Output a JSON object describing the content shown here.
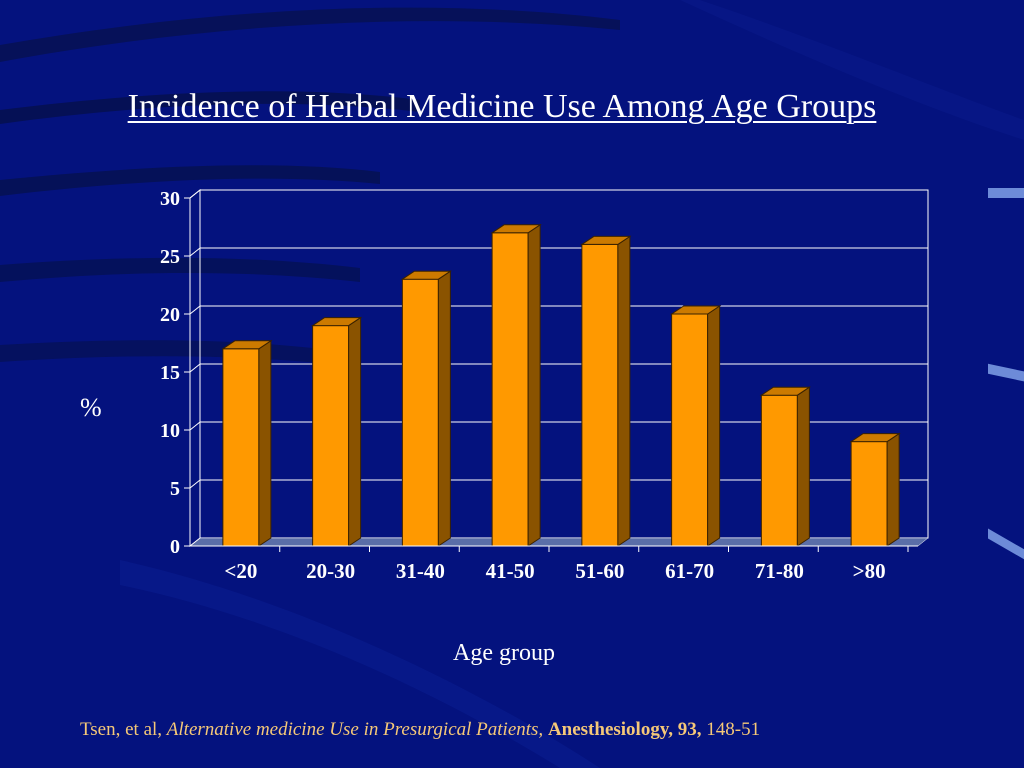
{
  "slide": {
    "title": "Incidence of Herbal Medicine Use Among Age Groups",
    "citation": {
      "authors": "Tsen, et al, ",
      "article": "Alternative medicine Use in Presurgical Patients, ",
      "journal": "Anesthesiology, 93, ",
      "pages": "148-51"
    }
  },
  "colors": {
    "background": "#04127e",
    "bar_front": "#ff9900",
    "bar_side": "#8a5300",
    "bar_top": "#cc7a00",
    "text": "#ffffff",
    "citation": "#f5c878"
  },
  "chart_data": {
    "type": "bar",
    "title": "Incidence of Herbal Medicine Use Among Age Groups",
    "xlabel": "Age group",
    "ylabel": "%",
    "categories": [
      "<20",
      "20-30",
      "31-40",
      "41-50",
      "51-60",
      "61-70",
      "71-80",
      ">80"
    ],
    "values": [
      17,
      19,
      23,
      27,
      26,
      20,
      13,
      9
    ],
    "ylim": [
      0,
      30
    ],
    "yticks": [
      0,
      5,
      10,
      15,
      20,
      25,
      30
    ],
    "grid": true,
    "legend": "none",
    "style": "3d"
  }
}
